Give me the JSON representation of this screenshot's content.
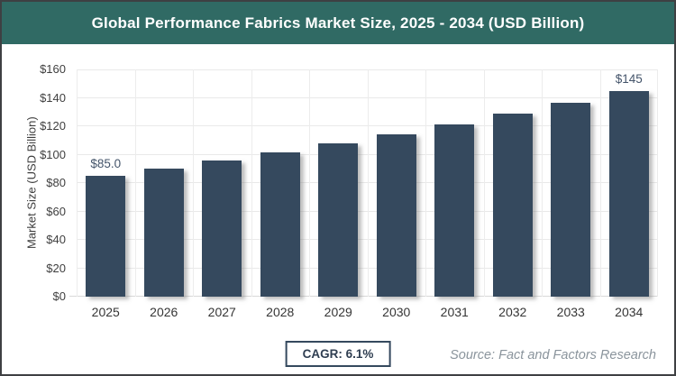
{
  "title": "Global Performance Fabrics Market Size, 2025 - 2034 (USD Billion)",
  "chart_data": {
    "type": "bar",
    "categories": [
      "2025",
      "2026",
      "2027",
      "2028",
      "2029",
      "2030",
      "2031",
      "2032",
      "2033",
      "2034"
    ],
    "values": [
      85.0,
      90.2,
      95.7,
      101.5,
      107.7,
      114.3,
      121.3,
      128.7,
      136.5,
      145.0
    ],
    "point_labels": [
      "$85.0",
      "",
      "",
      "",
      "",
      "",
      "",
      "",
      "",
      "$145"
    ],
    "title": "Global Performance Fabrics Market Size, 2025 - 2034 (USD Billion)",
    "xlabel": "",
    "ylabel": "Market Size (USD Billion)",
    "ylim": [
      0,
      160
    ],
    "ytick_labels": [
      "$0",
      "$20",
      "$40",
      "$60",
      "$80",
      "$100",
      "$120",
      "$140",
      "$160"
    ],
    "grid": true,
    "legend": "none",
    "bar_color": "#35495e"
  },
  "footer": {
    "cagr_label": "CAGR: 6.1%",
    "source": "Source: Fact and Factors Research"
  },
  "colors": {
    "header_bg": "#306a64",
    "header_text": "#ffffff",
    "bar": "#35495e",
    "point_label": "#44546a",
    "gridline": "#e9e9e9",
    "axis_text": "#3f3f3f",
    "source_text": "#8a949c",
    "cagr_border": "#35495e"
  }
}
